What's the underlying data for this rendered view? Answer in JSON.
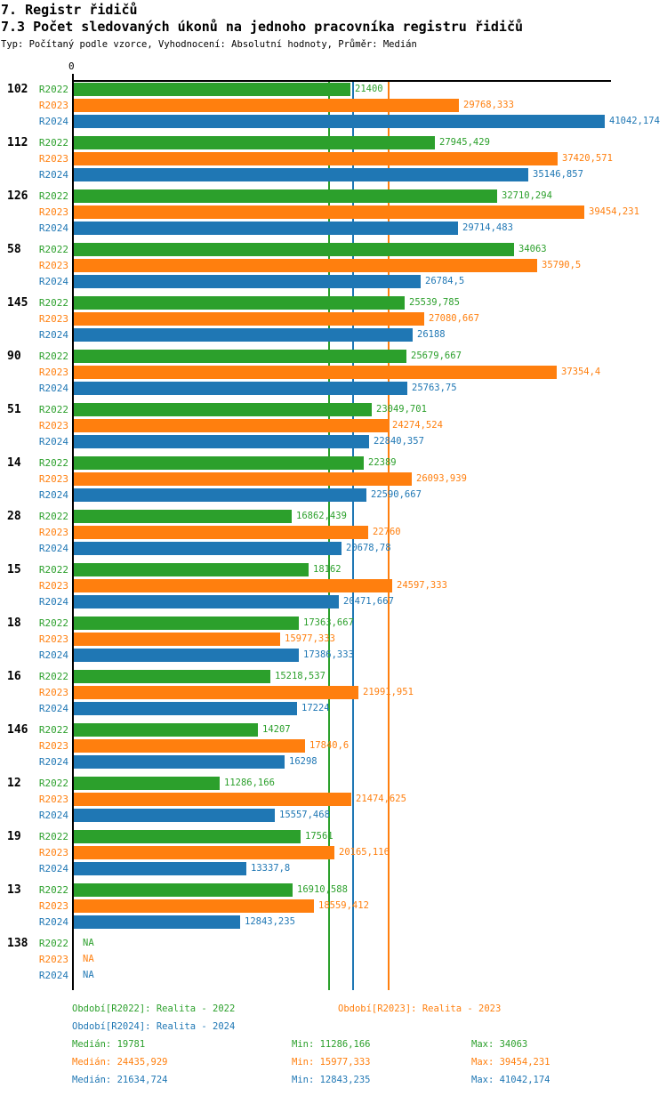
{
  "header": {
    "title": "7. Registr řidičů",
    "subtitle": "7.3 Počet sledovaných úkonů na jednoho pracovníka registru řidičů",
    "meta": "Typ: Počítaný podle vzorce, Vyhodnocení: Absolutní hodnoty, Průměr: Medián"
  },
  "chart_data": {
    "type": "bar",
    "orientation": "horizontal",
    "axis": {
      "zero_label": "0",
      "xmin": 0,
      "xmax_drawn": 41524,
      "grid": "off",
      "reference_lines": "series medians (vertical colored lines)"
    },
    "legend_position": "bottom",
    "series": [
      {
        "name": "R2022",
        "color": "#2ca02c",
        "legend": "Období[R2022]: Realita - 2022",
        "median": "19781",
        "min": "11286,166",
        "max": "34063"
      },
      {
        "name": "R2023",
        "color": "#ff7f0e",
        "legend": "Období[R2023]: Realita - 2023",
        "median": "24435,929",
        "min": "15977,333",
        "max": "39454,231"
      },
      {
        "name": "R2024",
        "color": "#1f77b4",
        "legend": "Období[R2024]: Realita - 2024",
        "median": "21634,724",
        "min": "12843,235",
        "max": "41042,174"
      }
    ],
    "stats_labels": {
      "median": "Medián",
      "min": "Min",
      "max": "Max"
    },
    "na_text": "NA",
    "categories": [
      "102",
      "112",
      "126",
      "58",
      "145",
      "90",
      "51",
      "14",
      "28",
      "15",
      "18",
      "16",
      "146",
      "12",
      "19",
      "13",
      "138"
    ],
    "groups": [
      {
        "label": "102",
        "values": [
          "21400",
          "29768,333",
          "41042,174"
        ]
      },
      {
        "label": "112",
        "values": [
          "27945,429",
          "37420,571",
          "35146,857"
        ]
      },
      {
        "label": "126",
        "values": [
          "32710,294",
          "39454,231",
          "29714,483"
        ]
      },
      {
        "label": "58",
        "values": [
          "34063",
          "35790,5",
          "26784,5"
        ]
      },
      {
        "label": "145",
        "values": [
          "25539,785",
          "27080,667",
          "26188"
        ]
      },
      {
        "label": "90",
        "values": [
          "25679,667",
          "37354,4",
          "25763,75"
        ]
      },
      {
        "label": "51",
        "values": [
          "23049,701",
          "24274,524",
          "22840,357"
        ]
      },
      {
        "label": "14",
        "values": [
          "22389",
          "26093,939",
          "22590,667"
        ]
      },
      {
        "label": "28",
        "values": [
          "16862,439",
          "22760",
          "20678,78"
        ]
      },
      {
        "label": "15",
        "values": [
          "18162",
          "24597,333",
          "20471,667"
        ]
      },
      {
        "label": "18",
        "values": [
          "17363,667",
          "15977,333",
          "17386,333"
        ]
      },
      {
        "label": "16",
        "values": [
          "15218,537",
          "21991,951",
          "17224"
        ]
      },
      {
        "label": "146",
        "values": [
          "14207",
          "17840,6",
          "16298"
        ]
      },
      {
        "label": "12",
        "values": [
          "11286,166",
          "21474,625",
          "15557,468"
        ]
      },
      {
        "label": "19",
        "values": [
          "17561",
          "20165,116",
          "13337,8"
        ]
      },
      {
        "label": "13",
        "values": [
          "16910,588",
          "18559,412",
          "12843,235"
        ]
      },
      {
        "label": "138",
        "values": [
          "NA",
          "NA",
          "NA"
        ]
      }
    ]
  }
}
